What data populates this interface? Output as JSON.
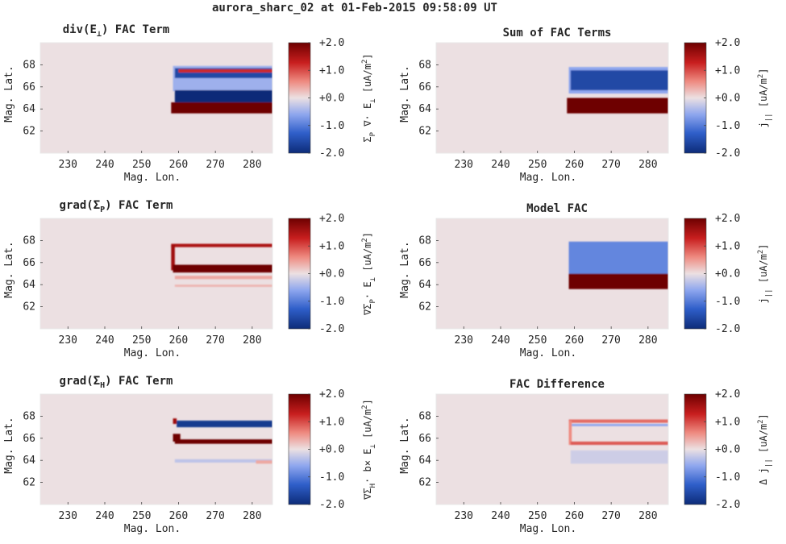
{
  "figure": {
    "title": "aurora_sharc_02 at 01-Feb-2015 09:58:09 UT"
  },
  "chart_data": [
    {
      "id": "divE",
      "type": "heatmap",
      "title": "div(E⊥) FAC Term",
      "title_parts": {
        "pre": "div(E",
        "sub": "⊥",
        "post": ") FAC Term"
      },
      "xlabel": "Mag. Lon.",
      "ylabel": "Mag. Lat.",
      "xlim": [
        222.5,
        285.5
      ],
      "ylim": [
        60,
        70
      ],
      "xticks": [
        230,
        240,
        250,
        260,
        270,
        280
      ],
      "yticks": [
        62,
        64,
        66,
        68
      ],
      "colorbar": {
        "label": "Σ_P ∇· E_⊥ [uA/m^2]",
        "label_parts": [
          {
            "t": "Σ"
          },
          {
            "t": "P",
            "s": "sub"
          },
          {
            "t": " ∇· E"
          },
          {
            "t": "⊥",
            "s": "sub"
          },
          {
            "t": " [uA/m"
          },
          {
            "t": "2",
            "s": "sup"
          },
          {
            "t": "]"
          }
        ],
        "ticks": [
          "+2.0",
          "+1.0",
          "+0.0",
          "-1.0",
          "-2.0"
        ],
        "range": [
          -2,
          2
        ]
      },
      "features": [
        {
          "shape": "rect",
          "lon": [
            258.5,
            285.5
          ],
          "lat": [
            65.6,
            67.9
          ],
          "value": -0.5
        },
        {
          "shape": "rect",
          "lon": [
            259,
            285.5
          ],
          "lat": [
            64.6,
            65.7
          ],
          "value": -2.0
        },
        {
          "shape": "rect",
          "lon": [
            259,
            285.5
          ],
          "lat": [
            66.8,
            67.7
          ],
          "value": -1.6
        },
        {
          "shape": "rect",
          "lon": [
            260,
            285.5
          ],
          "lat": [
            67.3,
            67.6
          ],
          "value": 1.2
        },
        {
          "shape": "rect",
          "lon": [
            258,
            285.5
          ],
          "lat": [
            63.6,
            64.6
          ],
          "value": 2.0
        }
      ]
    },
    {
      "id": "sum",
      "type": "heatmap",
      "title": "Sum of FAC Terms",
      "xlabel": "Mag. Lon.",
      "ylabel": "Mag. Lat.",
      "xlim": [
        222.5,
        285.5
      ],
      "ylim": [
        60,
        70
      ],
      "xticks": [
        230,
        240,
        250,
        260,
        270,
        280
      ],
      "yticks": [
        62,
        64,
        66,
        68
      ],
      "colorbar": {
        "label": "j_|| [uA/m^2]",
        "label_parts": [
          {
            "t": "j"
          },
          {
            "t": "||",
            "s": "sub"
          },
          {
            "t": " [uA/m"
          },
          {
            "t": "2",
            "s": "sup"
          },
          {
            "t": "]"
          }
        ],
        "ticks": [
          "+2.0",
          "+1.0",
          "+0.0",
          "-1.0",
          "-2.0"
        ],
        "range": [
          -2,
          2
        ]
      },
      "features": [
        {
          "shape": "rect",
          "lon": [
            258.5,
            285.5
          ],
          "lat": [
            65.4,
            67.8
          ],
          "value": -0.6
        },
        {
          "shape": "rect",
          "lon": [
            259,
            285.5
          ],
          "lat": [
            65.7,
            67.5
          ],
          "value": -1.6
        },
        {
          "shape": "rect",
          "lon": [
            258,
            285.5
          ],
          "lat": [
            63.6,
            65.0
          ],
          "value": 2.0
        }
      ]
    },
    {
      "id": "gradP",
      "type": "heatmap",
      "title": "grad(ΣP) FAC Term",
      "title_parts": {
        "pre": "grad(Σ",
        "sub": "P",
        "post": ") FAC Term"
      },
      "xlabel": "Mag. Lon.",
      "ylabel": "Mag. Lat.",
      "xlim": [
        222.5,
        285.5
      ],
      "ylim": [
        60,
        70
      ],
      "xticks": [
        230,
        240,
        250,
        260,
        270,
        280
      ],
      "yticks": [
        62,
        64,
        66,
        68
      ],
      "colorbar": {
        "label": "∇Σ_P· E_⊥ [uA/m^2]",
        "label_parts": [
          {
            "t": "∇Σ"
          },
          {
            "t": "P",
            "s": "sub"
          },
          {
            "t": "· E"
          },
          {
            "t": "⊥",
            "s": "sub"
          },
          {
            "t": " [uA/m"
          },
          {
            "t": "2",
            "s": "sup"
          },
          {
            "t": "]"
          }
        ],
        "ticks": [
          "+2.0",
          "+1.0",
          "+0.0",
          "-1.0",
          "-2.0"
        ],
        "range": [
          -2,
          2
        ]
      },
      "features": [
        {
          "shape": "rect",
          "lon": [
            258,
            285.5
          ],
          "lat": [
            67.4,
            67.7
          ],
          "value": 1.5
        },
        {
          "shape": "rect",
          "lon": [
            258,
            259
          ],
          "lat": [
            65.3,
            67.6
          ],
          "value": 1.6
        },
        {
          "shape": "rect",
          "lon": [
            258.5,
            285.5
          ],
          "lat": [
            65.1,
            65.8
          ],
          "value": 2.0
        },
        {
          "shape": "rect",
          "lon": [
            259,
            285.5
          ],
          "lat": [
            64.5,
            64.8
          ],
          "value": 0.4
        },
        {
          "shape": "rect",
          "lon": [
            259,
            285.5
          ],
          "lat": [
            63.8,
            64.0
          ],
          "value": 0.3
        }
      ]
    },
    {
      "id": "model",
      "type": "heatmap",
      "title": "Model FAC",
      "xlabel": "Mag. Lon.",
      "ylabel": "Mag. Lat.",
      "xlim": [
        222.5,
        285.5
      ],
      "ylim": [
        60,
        70
      ],
      "xticks": [
        230,
        240,
        250,
        260,
        270,
        280
      ],
      "yticks": [
        62,
        64,
        66,
        68
      ],
      "colorbar": {
        "label": "j_|| [uA/m^2]",
        "label_parts": [
          {
            "t": "j"
          },
          {
            "t": "||",
            "s": "sub"
          },
          {
            "t": " [uA/m"
          },
          {
            "t": "2",
            "s": "sup"
          },
          {
            "t": "]"
          }
        ],
        "ticks": [
          "+2.0",
          "+1.0",
          "+0.0",
          "-1.0",
          "-2.0"
        ],
        "range": [
          -2,
          2
        ]
      },
      "features": [
        {
          "shape": "rect",
          "lon": [
            258.5,
            285.5
          ],
          "lat": [
            65.0,
            67.9
          ],
          "value": -0.9
        },
        {
          "shape": "rect",
          "lon": [
            258.5,
            285.5
          ],
          "lat": [
            63.6,
            65.0
          ],
          "value": 2.0
        }
      ]
    },
    {
      "id": "gradH",
      "type": "heatmap",
      "title": "grad(ΣH) FAC Term",
      "title_parts": {
        "pre": "grad(Σ",
        "sub": "H",
        "post": ") FAC Term"
      },
      "xlabel": "Mag. Lon.",
      "ylabel": "Mag. Lat.",
      "xlim": [
        222.5,
        285.5
      ],
      "ylim": [
        60,
        70
      ],
      "xticks": [
        230,
        240,
        250,
        260,
        270,
        280
      ],
      "yticks": [
        62,
        64,
        66,
        68
      ],
      "colorbar": {
        "label": "∇Σ_H· b× E_⊥ [uA/m^2]",
        "label_parts": [
          {
            "t": "∇Σ"
          },
          {
            "t": "H",
            "s": "sub"
          },
          {
            "t": "· b× E"
          },
          {
            "t": "⊥",
            "s": "sub"
          },
          {
            "t": " [uA/m"
          },
          {
            "t": "2",
            "s": "sup"
          },
          {
            "t": "]"
          }
        ],
        "ticks": [
          "+2.0",
          "+1.0",
          "+0.0",
          "-1.0",
          "-2.0"
        ],
        "range": [
          -2,
          2
        ]
      },
      "features": [
        {
          "shape": "rect",
          "lon": [
            259.5,
            285.5
          ],
          "lat": [
            67.0,
            67.6
          ],
          "value": -1.8
        },
        {
          "shape": "rect",
          "lon": [
            258.5,
            259.5
          ],
          "lat": [
            67.3,
            67.8
          ],
          "value": 1.6
        },
        {
          "shape": "rect",
          "lon": [
            258.5,
            260.5
          ],
          "lat": [
            65.7,
            66.4
          ],
          "value": 2.0
        },
        {
          "shape": "rect",
          "lon": [
            259,
            285.5
          ],
          "lat": [
            65.5,
            65.9
          ],
          "value": 2.0
        },
        {
          "shape": "rect",
          "lon": [
            259,
            285.5
          ],
          "lat": [
            63.8,
            64.1
          ],
          "value": -0.3
        },
        {
          "shape": "rect",
          "lon": [
            281,
            285.5
          ],
          "lat": [
            63.7,
            64.0
          ],
          "value": 0.4
        }
      ]
    },
    {
      "id": "diff",
      "type": "heatmap",
      "title": "FAC Difference",
      "xlabel": "Mag. Lon.",
      "ylabel": "Mag. Lat.",
      "xlim": [
        222.5,
        285.5
      ],
      "ylim": [
        60,
        70
      ],
      "xticks": [
        230,
        240,
        250,
        260,
        270,
        280
      ],
      "yticks": [
        62,
        64,
        66,
        68
      ],
      "colorbar": {
        "label": "Δ j_|| [uA/m^2]",
        "label_parts": [
          {
            "t": "Δ j"
          },
          {
            "t": "||",
            "s": "sub"
          },
          {
            "t": " [uA/m"
          },
          {
            "t": "2",
            "s": "sup"
          },
          {
            "t": "]"
          }
        ],
        "ticks": [
          "+2.0",
          "+1.0",
          "+0.0",
          "-1.0",
          "-2.0"
        ],
        "range": [
          -2,
          2
        ]
      },
      "features": [
        {
          "shape": "rect",
          "lon": [
            258.5,
            285.5
          ],
          "lat": [
            67.4,
            67.7
          ],
          "value": 0.8
        },
        {
          "shape": "rect",
          "lon": [
            259,
            285.5
          ],
          "lat": [
            67.1,
            67.3
          ],
          "value": -0.6
        },
        {
          "shape": "rect",
          "lon": [
            258.5,
            259.3
          ],
          "lat": [
            65.4,
            67.6
          ],
          "value": 0.6
        },
        {
          "shape": "rect",
          "lon": [
            259,
            285.5
          ],
          "lat": [
            65.4,
            65.7
          ],
          "value": 0.9
        },
        {
          "shape": "rect",
          "lon": [
            259,
            285.5
          ],
          "lat": [
            63.7,
            64.9
          ],
          "value": -0.2
        }
      ]
    }
  ]
}
